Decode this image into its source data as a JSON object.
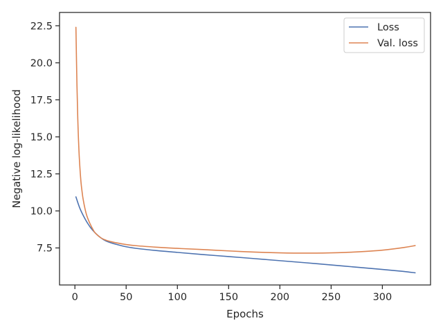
{
  "chart_data": {
    "type": "line",
    "title": "",
    "xlabel": "Epochs",
    "ylabel": "Negative log-likelihood",
    "xlim": [
      -15,
      347
    ],
    "ylim": [
      5.0,
      23.4
    ],
    "xticks": [
      0,
      50,
      100,
      150,
      200,
      250,
      300
    ],
    "yticks": [
      7.5,
      10.0,
      12.5,
      15.0,
      17.5,
      20.0,
      22.5
    ],
    "xtick_labels": [
      "0",
      "50",
      "100",
      "150",
      "200",
      "250",
      "300"
    ],
    "ytick_labels": [
      "7.5",
      "10.0",
      "12.5",
      "15.0",
      "17.5",
      "20.0",
      "22.5"
    ],
    "grid": false,
    "legend_position": "top-right",
    "series": [
      {
        "name": "Loss",
        "color": "#4c72b0",
        "x": [
          1,
          5,
          10,
          15,
          20,
          25,
          30,
          35,
          40,
          50,
          60,
          80,
          100,
          125,
          150,
          175,
          200,
          225,
          250,
          275,
          300,
          320,
          332
        ],
        "y": [
          10.95,
          10.15,
          9.45,
          8.9,
          8.5,
          8.2,
          7.98,
          7.85,
          7.75,
          7.58,
          7.47,
          7.32,
          7.2,
          7.05,
          6.92,
          6.78,
          6.64,
          6.5,
          6.35,
          6.2,
          6.05,
          5.92,
          5.82
        ]
      },
      {
        "name": "Val. loss",
        "color": "#dd8452",
        "x": [
          1,
          2,
          3,
          4,
          5,
          6,
          7,
          8,
          10,
          12,
          15,
          18,
          20,
          25,
          30,
          35,
          40,
          50,
          60,
          80,
          100,
          125,
          150,
          175,
          200,
          225,
          250,
          265,
          280,
          300,
          320,
          332
        ],
        "y": [
          22.4,
          18.5,
          15.8,
          14.0,
          12.8,
          11.9,
          11.3,
          10.8,
          10.1,
          9.6,
          9.1,
          8.7,
          8.5,
          8.2,
          8.03,
          7.93,
          7.85,
          7.73,
          7.65,
          7.55,
          7.47,
          7.39,
          7.3,
          7.22,
          7.17,
          7.15,
          7.17,
          7.2,
          7.25,
          7.35,
          7.52,
          7.66
        ]
      }
    ]
  }
}
